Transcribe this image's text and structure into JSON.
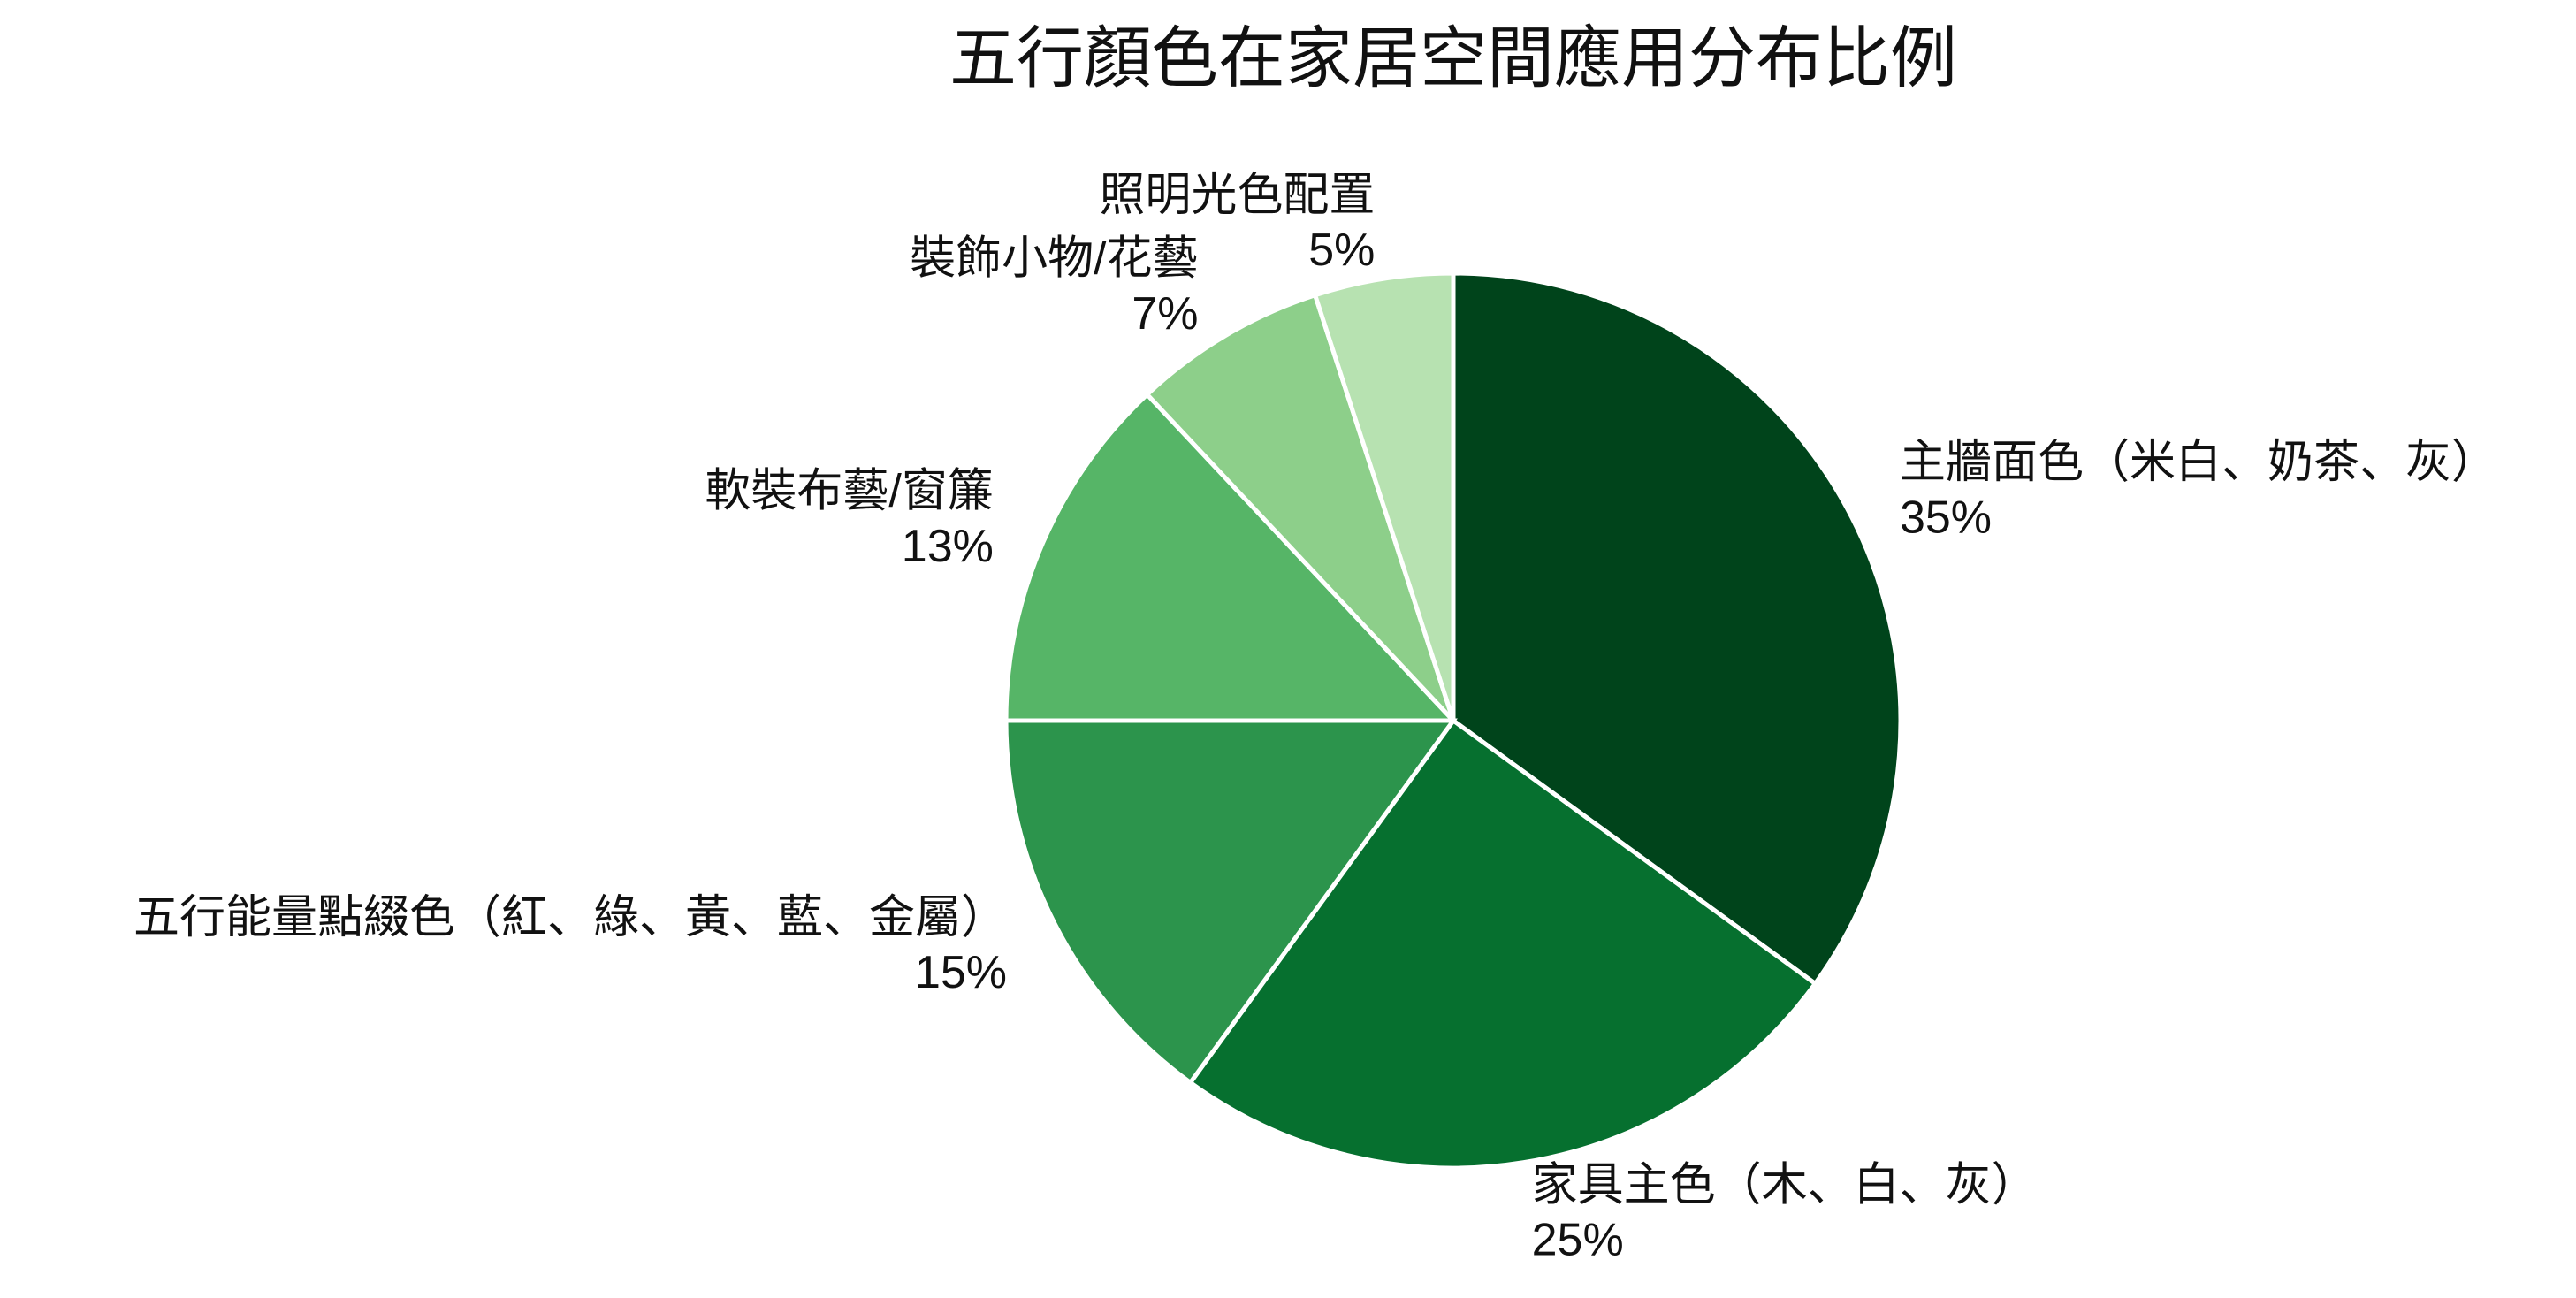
{
  "chart_data": {
    "type": "pie",
    "title": "五行顏色在家居空間應用分布比例",
    "categories": [
      "主牆面色（米白、奶茶、灰）",
      "家具主色（木、白、灰）",
      "五行能量點綴色（紅、綠、黃、藍、金屬）",
      "軟裝布藝/窗簾",
      "裝飾小物/花藝",
      "照明光色配置"
    ],
    "values": [
      35,
      25,
      15,
      13,
      7,
      5
    ],
    "value_labels": [
      "35%",
      "25%",
      "15%",
      "13%",
      "7%",
      "5%"
    ],
    "colors": [
      "#00441b",
      "#06702f",
      "#2c944c",
      "#56b567",
      "#8dcf8a",
      "#b7e2b1"
    ]
  }
}
